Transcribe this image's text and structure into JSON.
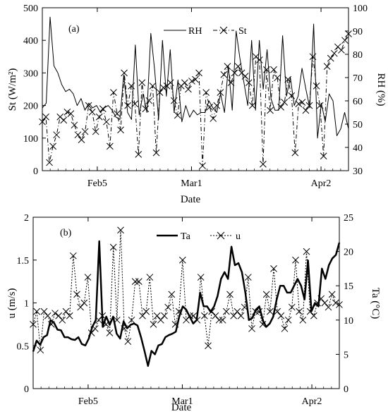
{
  "chart_data": [
    {
      "type": "line",
      "panel_label": "(a)",
      "xlabel": "Date",
      "ylabel_left": "St (W/m²)",
      "ylabel_right": "RH (%)",
      "x_ticks": [
        "Feb5",
        "Mar1",
        "Apr2"
      ],
      "x_tick_days": [
        14,
        38,
        71
      ],
      "x_range_days": [
        0,
        78
      ],
      "ylim_left": [
        0,
        500
      ],
      "yticks_left": [
        0,
        100,
        200,
        300,
        400,
        500
      ],
      "ylim_right": [
        30,
        100
      ],
      "yticks_right": [
        30,
        40,
        50,
        60,
        70,
        80,
        90,
        100
      ],
      "legend": {
        "placement": "top-center",
        "entries": [
          "RH",
          "St"
        ]
      },
      "series": [
        {
          "name": "RH",
          "axis": "right",
          "style": "solid",
          "values": [
            57,
            59,
            96,
            75,
            72,
            67,
            64,
            65,
            63,
            58,
            61,
            56,
            59,
            57,
            58,
            55,
            57,
            58,
            56,
            53,
            52,
            71,
            55,
            52,
            84,
            54,
            63,
            55,
            89,
            73,
            52,
            86,
            62,
            82,
            55,
            69,
            51,
            58,
            53,
            56,
            54,
            55,
            55,
            60,
            57,
            55,
            63,
            55,
            75,
            56,
            90,
            78,
            68,
            58,
            86,
            56,
            86,
            65,
            82,
            61,
            56,
            56,
            88,
            62,
            70,
            58,
            62,
            74,
            65,
            57,
            93,
            44,
            59,
            51,
            63,
            60,
            45,
            48,
            55,
            48
          ]
        },
        {
          "name": "St",
          "axis": "left",
          "style": "dash-dot",
          "marker": "x",
          "values": [
            150,
            165,
            25,
            75,
            110,
            165,
            155,
            180,
            175,
            140,
            110,
            95,
            120,
            200,
            180,
            120,
            165,
            190,
            150,
            75,
            240,
            175,
            125,
            300,
            200,
            260,
            205,
            50,
            270,
            190,
            215,
            260,
            55,
            240,
            255,
            260,
            270,
            215,
            170,
            260,
            270,
            250,
            275,
            280,
            300,
            15,
            240,
            195,
            160,
            200,
            240,
            295,
            320,
            270,
            300,
            320,
            300,
            290,
            270,
            200,
            350,
            340,
            20,
            310,
            185,
            310,
            285,
            195,
            210,
            280,
            230,
            55,
            205,
            210,
            185,
            200,
            350,
            260,
            200,
            45,
            320,
            345,
            360,
            380,
            370,
            400,
            420
          ]
        }
      ]
    },
    {
      "type": "line",
      "panel_label": "(b)",
      "xlabel": "Date",
      "ylabel_left": "u (m/s)",
      "ylabel_right": "Ta (°C)",
      "x_ticks": [
        "Feb5",
        "Mar1",
        "Apr2"
      ],
      "x_tick_days": [
        14,
        38,
        71
      ],
      "x_range_days": [
        0,
        78
      ],
      "ylim_left": [
        0,
        2
      ],
      "yticks_left": [
        0,
        0.5,
        1,
        1.5,
        2
      ],
      "ylim_right": [
        0,
        25
      ],
      "yticks_right": [
        0,
        5,
        10,
        15,
        20,
        25
      ],
      "legend": {
        "placement": "top-center",
        "entries": [
          "Ta",
          "u"
        ]
      },
      "series": [
        {
          "name": "Ta",
          "axis": "right",
          "style": "solid",
          "values": [
            5.4,
            7,
            6.4,
            7.5,
            7.8,
            10,
            9.6,
            8.6,
            8.5,
            7.5,
            7.5,
            7.2,
            7.1,
            7.5,
            6.5,
            6.3,
            7.3,
            9,
            10,
            21.5,
            9,
            10.5,
            9.3,
            10.5,
            8,
            7.3,
            9.8,
            8.8,
            9.3,
            9.5,
            9.2,
            7.5,
            5.5,
            3.3,
            5.5,
            5,
            6.3,
            6.5,
            7.5,
            7.8,
            8,
            8.3,
            10.5,
            12,
            11.5,
            10.5,
            9.5,
            10,
            14,
            12,
            12,
            11.2,
            12,
            13.5,
            16,
            17,
            16,
            20.7,
            18,
            18.3,
            17,
            14,
            10,
            10.3,
            11.5,
            12,
            10,
            9,
            9.5,
            10.5,
            13,
            15,
            15,
            14,
            14,
            15,
            16,
            15,
            13,
            18.7,
            11.3,
            12.5,
            12,
            17.5,
            16,
            18,
            19,
            19.5,
            21.3
          ]
        },
        {
          "name": "u",
          "axis": "left",
          "style": "dotted",
          "marker": "x",
          "values": [
            0.75,
            0.9,
            0.45,
            0.9,
            0.85,
            0.75,
            0.88,
            0.85,
            0.8,
            0.9,
            0.85,
            1.55,
            1.1,
            0.95,
            1.0,
            1.3,
            0.65,
            0.7,
            0.8,
            0.85,
            0.75,
            0.65,
            1.65,
            0.8,
            1.85,
            0.7,
            0.55,
            0.8,
            1.25,
            1.25,
            0.85,
            0.9,
            1.3,
            0.75,
            0.85,
            0.8,
            0.85,
            0.95,
            1.1,
            0.75,
            0.9,
            1.5,
            0.8,
            0.85,
            0.85,
            0.8,
            1.3,
            0.85,
            0.5,
            0.9,
            0.85,
            0.8,
            0.8,
            0.9,
            1.1,
            0.85,
            0.9,
            0.85,
            0.95,
            1.3,
            0.7,
            0.9,
            0.9,
            0.75,
            1.1,
            0.9,
            1.4,
            0.9,
            0.85,
            0.7,
            0.8,
            0.95,
            1.5,
            0.9,
            0.8,
            1.6,
            0.9,
            0.85,
            1.0,
            1.05,
            1.0,
            0.95,
            1.1,
            1.0,
            0.98
          ]
        }
      ]
    }
  ]
}
